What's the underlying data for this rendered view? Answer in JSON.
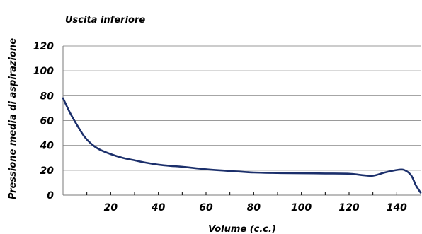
{
  "chart_data": {
    "type": "line",
    "title": "Uscita inferiore",
    "xlabel": "Volume (c.c.)",
    "ylabel": "Pressione media di aspirazione",
    "xlim": [
      0,
      150
    ],
    "ylim": [
      0,
      120
    ],
    "x_ticks": [
      20,
      40,
      60,
      80,
      100,
      120,
      140
    ],
    "y_ticks": [
      0,
      20,
      40,
      60,
      80,
      100,
      120
    ],
    "grid": "horizontal",
    "legend": "none",
    "line_color": "#1b2f6b",
    "series": [
      {
        "x": [
          0,
          3,
          6,
          9,
          12,
          15,
          20,
          25,
          30,
          35,
          40,
          45,
          50,
          60,
          70,
          80,
          90,
          100,
          110,
          120,
          125,
          130,
          135,
          140,
          143,
          146,
          148,
          150
        ],
        "y": [
          78,
          66,
          56,
          47,
          41,
          37,
          33,
          30,
          28,
          26,
          24.5,
          23.5,
          22.8,
          20.8,
          19.4,
          18.2,
          17.8,
          17.6,
          17.4,
          17.2,
          16.2,
          15.6,
          18.2,
          20.2,
          20.3,
          16,
          8,
          2
        ]
      }
    ]
  }
}
